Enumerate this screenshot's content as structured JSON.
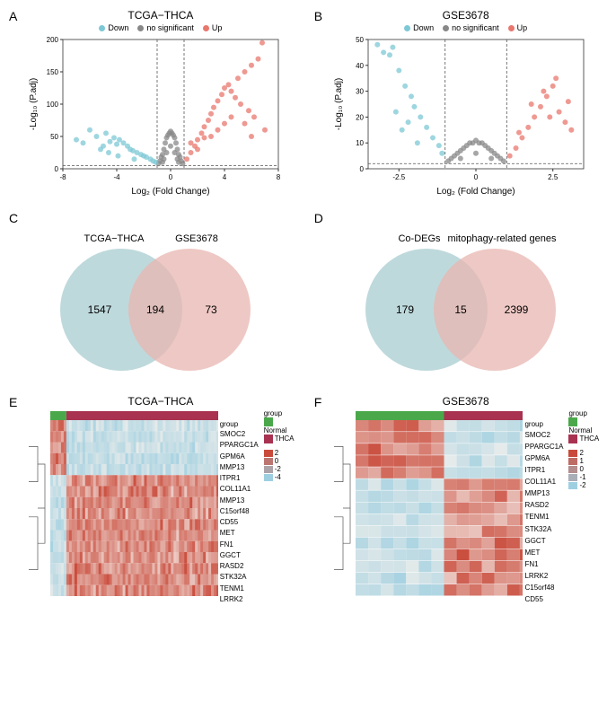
{
  "colors": {
    "down": "#7ec8d6",
    "nosig": "#888888",
    "up": "#e8776e",
    "venn_left": "#b7d5d8",
    "venn_right": "#e8b6b0",
    "venn_overlap": "#c9b2a6",
    "normal": "#4aa84a",
    "thca": "#a83250",
    "heat_high": "#c94a3a",
    "heat_low": "#9ecfe0",
    "heat_mid": "#f5f0ec"
  },
  "panelA": {
    "label": "A",
    "title": "TCGA−THCA",
    "legend": [
      "Down",
      "no significant",
      "Up"
    ],
    "xlabel": "Log₂ (Fold Change)",
    "ylabel": "-Log₁₀ (P.adj)",
    "xlim": [
      -8,
      8
    ],
    "xticks": [
      -8,
      -4,
      0,
      4,
      8
    ],
    "ylim": [
      0,
      200
    ],
    "yticks": [
      0,
      50,
      100,
      150,
      200
    ],
    "vlines": [
      -1,
      1
    ],
    "hline": 5,
    "points_down": [
      [
        -7,
        45
      ],
      [
        -6.5,
        40
      ],
      [
        -6,
        60
      ],
      [
        -5.5,
        50
      ],
      [
        -5,
        35
      ],
      [
        -4.8,
        55
      ],
      [
        -4.5,
        42
      ],
      [
        -4.2,
        48
      ],
      [
        -4,
        38
      ],
      [
        -3.8,
        45
      ],
      [
        -3.5,
        40
      ],
      [
        -3.2,
        35
      ],
      [
        -3,
        30
      ],
      [
        -2.8,
        28
      ],
      [
        -2.5,
        25
      ],
      [
        -2.2,
        22
      ],
      [
        -2,
        20
      ],
      [
        -1.8,
        18
      ],
      [
        -1.5,
        15
      ],
      [
        -1.3,
        12
      ],
      [
        -1.1,
        10
      ],
      [
        -5.2,
        30
      ],
      [
        -4.6,
        25
      ],
      [
        -3.9,
        20
      ],
      [
        -2.7,
        15
      ]
    ],
    "points_nosig": [
      [
        -0.9,
        8
      ],
      [
        -0.8,
        12
      ],
      [
        -0.7,
        18
      ],
      [
        -0.6,
        22
      ],
      [
        -0.5,
        30
      ],
      [
        -0.4,
        40
      ],
      [
        -0.3,
        48
      ],
      [
        -0.2,
        52
      ],
      [
        -0.1,
        55
      ],
      [
        0,
        58
      ],
      [
        0.1,
        55
      ],
      [
        0.2,
        52
      ],
      [
        0.3,
        48
      ],
      [
        0.4,
        40
      ],
      [
        0.5,
        30
      ],
      [
        0.6,
        22
      ],
      [
        0.7,
        18
      ],
      [
        0.8,
        12
      ],
      [
        0.9,
        8
      ],
      [
        -0.5,
        15
      ],
      [
        0.5,
        15
      ],
      [
        -0.3,
        25
      ],
      [
        0.3,
        25
      ],
      [
        0,
        35
      ],
      [
        -0.6,
        10
      ],
      [
        0.6,
        10
      ]
    ],
    "points_up": [
      [
        1.2,
        15
      ],
      [
        1.5,
        25
      ],
      [
        1.8,
        35
      ],
      [
        2,
        45
      ],
      [
        2.3,
        55
      ],
      [
        2.5,
        65
      ],
      [
        2.8,
        75
      ],
      [
        3,
        85
      ],
      [
        3.2,
        95
      ],
      [
        3.5,
        105
      ],
      [
        3.8,
        115
      ],
      [
        4,
        125
      ],
      [
        4.3,
        130
      ],
      [
        4.5,
        120
      ],
      [
        4.8,
        110
      ],
      [
        5,
        140
      ],
      [
        5.2,
        100
      ],
      [
        5.5,
        150
      ],
      [
        5.8,
        90
      ],
      [
        6,
        160
      ],
      [
        6.2,
        80
      ],
      [
        6.5,
        170
      ],
      [
        6.8,
        195
      ],
      [
        7,
        60
      ],
      [
        4,
        70
      ],
      [
        3,
        50
      ],
      [
        2,
        30
      ],
      [
        1.5,
        40
      ],
      [
        2.5,
        48
      ],
      [
        3.5,
        60
      ],
      [
        4.5,
        80
      ],
      [
        5.5,
        70
      ],
      [
        6,
        50
      ]
    ]
  },
  "panelB": {
    "label": "B",
    "title": "GSE3678",
    "legend": [
      "Down",
      "no significant",
      "Up"
    ],
    "xlabel": "Log₂ (Fold Change)",
    "ylabel": "-Log₁₀ (P.adj)",
    "xlim": [
      -3.5,
      3.5
    ],
    "xticks": [
      -2.5,
      0,
      2.5
    ],
    "ylim": [
      0,
      50
    ],
    "yticks": [
      0,
      10,
      20,
      30,
      40,
      50
    ],
    "vlines": [
      -1,
      1
    ],
    "hline": 2,
    "points_down": [
      [
        -3.2,
        48
      ],
      [
        -3.0,
        45
      ],
      [
        -2.8,
        44
      ],
      [
        -2.7,
        47
      ],
      [
        -2.5,
        38
      ],
      [
        -2.3,
        32
      ],
      [
        -2.1,
        28
      ],
      [
        -2.0,
        24
      ],
      [
        -1.8,
        20
      ],
      [
        -1.6,
        16
      ],
      [
        -1.4,
        12
      ],
      [
        -1.2,
        9
      ],
      [
        -1.1,
        6
      ],
      [
        -2.4,
        15
      ],
      [
        -1.9,
        10
      ],
      [
        -2.6,
        22
      ],
      [
        -2.2,
        18
      ]
    ],
    "points_nosig": [
      [
        -0.9,
        3
      ],
      [
        -0.8,
        4
      ],
      [
        -0.7,
        5
      ],
      [
        -0.6,
        6
      ],
      [
        -0.5,
        7
      ],
      [
        -0.4,
        8
      ],
      [
        -0.3,
        9
      ],
      [
        -0.2,
        10
      ],
      [
        -0.1,
        10
      ],
      [
        0,
        11
      ],
      [
        0.1,
        10
      ],
      [
        0.2,
        10
      ],
      [
        0.3,
        9
      ],
      [
        0.4,
        8
      ],
      [
        0.5,
        7
      ],
      [
        0.6,
        6
      ],
      [
        0.7,
        5
      ],
      [
        0.8,
        4
      ],
      [
        0.9,
        3
      ],
      [
        -0.5,
        4
      ],
      [
        0.5,
        4
      ],
      [
        0,
        6
      ]
    ],
    "points_up": [
      [
        1.1,
        5
      ],
      [
        1.3,
        8
      ],
      [
        1.5,
        12
      ],
      [
        1.7,
        16
      ],
      [
        1.9,
        20
      ],
      [
        2.1,
        24
      ],
      [
        2.3,
        28
      ],
      [
        2.5,
        32
      ],
      [
        2.7,
        22
      ],
      [
        2.6,
        35
      ],
      [
        2.9,
        18
      ],
      [
        3.0,
        26
      ],
      [
        3.1,
        15
      ],
      [
        1.4,
        14
      ],
      [
        1.8,
        25
      ],
      [
        2.2,
        30
      ],
      [
        2.4,
        20
      ]
    ]
  },
  "panelC": {
    "label": "C",
    "left_label": "TCGA−THCA",
    "right_label": "GSE3678",
    "left_only": 1547,
    "overlap": 194,
    "right_only": 73
  },
  "panelD": {
    "label": "D",
    "left_label": "Co-DEGs",
    "right_label": "mitophagy-related genes",
    "left_only": 179,
    "overlap": 15,
    "right_only": 2399
  },
  "panelE": {
    "label": "E",
    "title": "TCGA−THCA",
    "genes": [
      "SMOC2",
      "PPARGC1A",
      "GPM6A",
      "MMP13",
      "ITPR1",
      "COL11A1",
      "MMP13",
      "C15orf48",
      "CD55",
      "MET",
      "FN1",
      "GGCT",
      "RASD2",
      "STK32A",
      "TENM1",
      "LRRK2"
    ],
    "group_label": "group",
    "legend_groups": [
      "Normal",
      "THCA"
    ],
    "scale_ticks": [
      2,
      0,
      -2,
      -4
    ],
    "n_normal": 6,
    "n_thca": 60
  },
  "panelF": {
    "label": "F",
    "title": "GSE3678",
    "genes": [
      "SMOC2",
      "PPARGC1A",
      "GPM6A",
      "ITPR1",
      "COL11A1",
      "MMP13",
      "RASD2",
      "TENM1",
      "STK32A",
      "GGCT",
      "MET",
      "FN1",
      "LRRK2",
      "C15orf48",
      "CD55"
    ],
    "group_label": "group",
    "legend_groups": [
      "Normal",
      "THCA"
    ],
    "scale_ticks": [
      2,
      1,
      0,
      -1,
      -2
    ],
    "n_normal": 7,
    "n_thca": 7
  }
}
